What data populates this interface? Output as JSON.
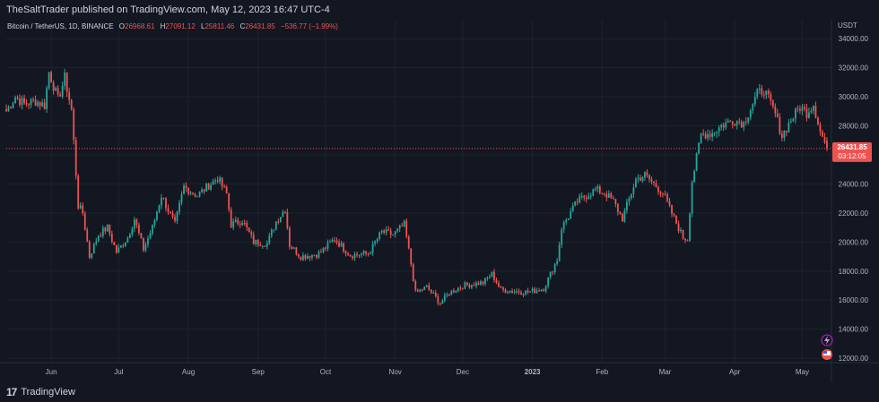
{
  "header": {
    "published": "TheSaltTrader published on TradingView.com, May 12, 2023 16:47 UTC-4"
  },
  "legend": {
    "symbol": "Bitcoin / TetherUS, 1D, BINANCE",
    "o_label": "O",
    "o_value": "26968.61",
    "h_label": "H",
    "h_value": "27091.12",
    "l_label": "L",
    "l_value": "25811.46",
    "c_label": "C",
    "c_value": "26431.85",
    "change": "−536.77 (−1.99%)"
  },
  "price_tag": {
    "price": "26431.85",
    "countdown": "03:12:05"
  },
  "footer": {
    "brand": "TradingView"
  },
  "colors": {
    "background": "#131722",
    "grid": "#1e222d",
    "up": "#26a69a",
    "down": "#ef5350",
    "text": "#d1d4dc",
    "axis_text": "#b2b5be"
  },
  "chart_data": {
    "type": "candlestick",
    "currency_label": "USDT",
    "y_ticks": [
      12000,
      14000,
      16000,
      18000,
      20000,
      22000,
      24000,
      26000,
      28000,
      30000,
      32000,
      34000
    ],
    "ylim": [
      11700,
      35300
    ],
    "x_ticks": [
      {
        "label": "Jun",
        "date": "2022-06-01",
        "bold": false
      },
      {
        "label": "Jul",
        "date": "2022-07-01",
        "bold": false
      },
      {
        "label": "Aug",
        "date": "2022-08-01",
        "bold": false
      },
      {
        "label": "Sep",
        "date": "2022-09-01",
        "bold": false
      },
      {
        "label": "Oct",
        "date": "2022-10-01",
        "bold": false
      },
      {
        "label": "Nov",
        "date": "2022-11-01",
        "bold": false
      },
      {
        "label": "Dec",
        "date": "2022-12-01",
        "bold": false
      },
      {
        "label": "2023",
        "date": "2023-01-01",
        "bold": true
      },
      {
        "label": "Feb",
        "date": "2023-02-01",
        "bold": false
      },
      {
        "label": "Mar",
        "date": "2023-03-01",
        "bold": false
      },
      {
        "label": "Apr",
        "date": "2023-04-01",
        "bold": false
      },
      {
        "label": "May",
        "date": "2023-05-01",
        "bold": false
      }
    ],
    "x_range": [
      "2022-05-12",
      "2023-05-14"
    ],
    "last_price": 26431.85,
    "close_path": [
      [
        "2022-05-12",
        29000
      ],
      [
        "2022-05-16",
        30000
      ],
      [
        "2022-05-20",
        29500
      ],
      [
        "2022-05-25",
        29700
      ],
      [
        "2022-05-29",
        29400
      ],
      [
        "2022-05-31",
        31700
      ],
      [
        "2022-06-04",
        29800
      ],
      [
        "2022-06-07",
        31300
      ],
      [
        "2022-06-10",
        29100
      ],
      [
        "2022-06-13",
        22500
      ],
      [
        "2022-06-15",
        22000
      ],
      [
        "2022-06-18",
        19000
      ],
      [
        "2022-06-22",
        20500
      ],
      [
        "2022-06-26",
        21000
      ],
      [
        "2022-06-30",
        19300
      ],
      [
        "2022-07-05",
        20300
      ],
      [
        "2022-07-08",
        21600
      ],
      [
        "2022-07-12",
        19500
      ],
      [
        "2022-07-16",
        21000
      ],
      [
        "2022-07-20",
        23200
      ],
      [
        "2022-07-26",
        21200
      ],
      [
        "2022-07-30",
        23800
      ],
      [
        "2022-08-05",
        23200
      ],
      [
        "2022-08-10",
        23900
      ],
      [
        "2022-08-14",
        24400
      ],
      [
        "2022-08-18",
        23300
      ],
      [
        "2022-08-20",
        21200
      ],
      [
        "2022-08-25",
        21500
      ],
      [
        "2022-08-30",
        20000
      ],
      [
        "2022-09-05",
        19900
      ],
      [
        "2022-09-09",
        21400
      ],
      [
        "2022-09-13",
        22300
      ],
      [
        "2022-09-15",
        19800
      ],
      [
        "2022-09-20",
        19000
      ],
      [
        "2022-09-28",
        19200
      ],
      [
        "2022-10-05",
        20200
      ],
      [
        "2022-10-12",
        19100
      ],
      [
        "2022-10-20",
        19200
      ],
      [
        "2022-10-26",
        20700
      ],
      [
        "2022-10-31",
        20500
      ],
      [
        "2022-11-05",
        21200
      ],
      [
        "2022-11-08",
        18500
      ],
      [
        "2022-11-10",
        16500
      ],
      [
        "2022-11-15",
        16900
      ],
      [
        "2022-11-21",
        15800
      ],
      [
        "2022-11-25",
        16500
      ],
      [
        "2022-12-01",
        17000
      ],
      [
        "2022-12-10",
        17200
      ],
      [
        "2022-12-14",
        17800
      ],
      [
        "2022-12-18",
        16700
      ],
      [
        "2022-12-30",
        16550
      ],
      [
        "2023-01-06",
        16800
      ],
      [
        "2023-01-12",
        18800
      ],
      [
        "2023-01-14",
        21000
      ],
      [
        "2023-01-21",
        22800
      ],
      [
        "2023-01-29",
        23600
      ],
      [
        "2023-02-02",
        23400
      ],
      [
        "2023-02-06",
        22800
      ],
      [
        "2023-02-10",
        21600
      ],
      [
        "2023-02-16",
        24300
      ],
      [
        "2023-02-20",
        24600
      ],
      [
        "2023-02-28",
        23400
      ],
      [
        "2023-03-03",
        22300
      ],
      [
        "2023-03-09",
        20300
      ],
      [
        "2023-03-11",
        20200
      ],
      [
        "2023-03-13",
        24200
      ],
      [
        "2023-03-17",
        27400
      ],
      [
        "2023-03-22",
        27500
      ],
      [
        "2023-03-26",
        28000
      ],
      [
        "2023-03-31",
        28400
      ],
      [
        "2023-04-05",
        28200
      ],
      [
        "2023-04-11",
        30200
      ],
      [
        "2023-04-14",
        30500
      ],
      [
        "2023-04-19",
        28800
      ],
      [
        "2023-04-22",
        27300
      ],
      [
        "2023-04-26",
        28400
      ],
      [
        "2023-04-30",
        29300
      ],
      [
        "2023-05-03",
        28900
      ],
      [
        "2023-05-06",
        29500
      ],
      [
        "2023-05-09",
        27600
      ],
      [
        "2023-05-12",
        26431.85
      ]
    ]
  }
}
